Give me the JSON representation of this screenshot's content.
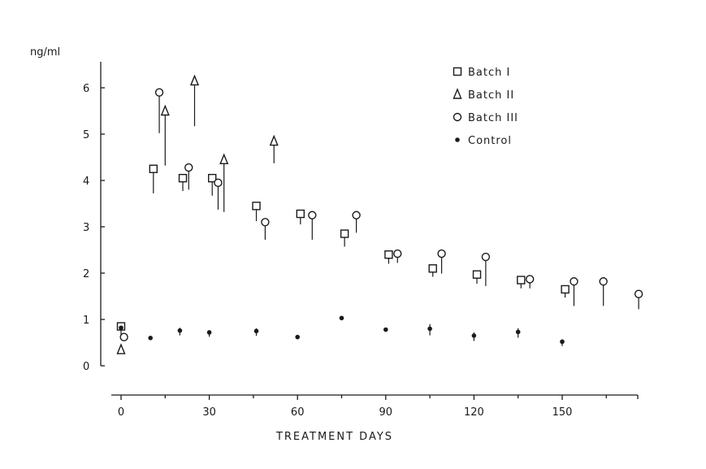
{
  "chart_data": {
    "type": "scatter",
    "ylabel": "ng/ml",
    "xlabel": "TREATMENT DAYS",
    "xlim": [
      0,
      175
    ],
    "ylim": [
      0,
      6.5
    ],
    "xticks": [
      "0",
      "30",
      "60",
      "90",
      "120",
      "150"
    ],
    "yticks": [
      "0",
      "1",
      "2",
      "3",
      "4",
      "5",
      "6"
    ],
    "legend_position": "top-right",
    "series": [
      {
        "name": "Batch I",
        "marker": "square",
        "points": [
          {
            "x": 0,
            "y": 0.85,
            "err": 0.1
          },
          {
            "x": 11,
            "y": 4.25,
            "err": 0.45
          },
          {
            "x": 21,
            "y": 4.05,
            "err": 0.2
          },
          {
            "x": 31,
            "y": 4.05,
            "err": 0.3
          },
          {
            "x": 46,
            "y": 3.45,
            "err": 0.25
          },
          {
            "x": 61,
            "y": 3.28,
            "err": 0.15
          },
          {
            "x": 76,
            "y": 2.85,
            "err": 0.2
          },
          {
            "x": 91,
            "y": 2.4,
            "err": 0.12
          },
          {
            "x": 106,
            "y": 2.1,
            "err": 0.1
          },
          {
            "x": 121,
            "y": 1.97,
            "err": 0.12
          },
          {
            "x": 136,
            "y": 1.85,
            "err": 0.1
          },
          {
            "x": 151,
            "y": 1.65,
            "err": 0.1
          }
        ]
      },
      {
        "name": "Batch II",
        "marker": "triangle",
        "points": [
          {
            "x": 0,
            "y": 0.35,
            "err": 0
          },
          {
            "x": 15,
            "y": 5.5,
            "err": 1.1
          },
          {
            "x": 25,
            "y": 6.15,
            "err": 0.9
          },
          {
            "x": 35,
            "y": 4.45,
            "err": 1.05
          },
          {
            "x": 52,
            "y": 4.85,
            "err": 0.4
          }
        ]
      },
      {
        "name": "Batch III",
        "marker": "circle",
        "points": [
          {
            "x": 1,
            "y": 0.62,
            "err": 0
          },
          {
            "x": 13,
            "y": 5.9,
            "err": 0.8
          },
          {
            "x": 23,
            "y": 4.28,
            "err": 0.4
          },
          {
            "x": 33,
            "y": 3.95,
            "err": 0.5
          },
          {
            "x": 49,
            "y": 3.1,
            "err": 0.3
          },
          {
            "x": 65,
            "y": 3.25,
            "err": 0.45
          },
          {
            "x": 80,
            "y": 3.25,
            "err": 0.3
          },
          {
            "x": 94,
            "y": 2.42,
            "err": 0.12
          },
          {
            "x": 109,
            "y": 2.42,
            "err": 0.35
          },
          {
            "x": 124,
            "y": 2.35,
            "err": 0.55
          },
          {
            "x": 139,
            "y": 1.87,
            "err": 0.12
          },
          {
            "x": 154,
            "y": 1.82,
            "err": 0.45
          },
          {
            "x": 164,
            "y": 1.82,
            "err": 0.45
          },
          {
            "x": 176,
            "y": 1.55,
            "err": 0.25
          }
        ]
      },
      {
        "name": "Control",
        "marker": "dot",
        "points": [
          {
            "x": 0,
            "y": 0.82,
            "err": 0
          },
          {
            "x": 10,
            "y": 0.6,
            "err": 0
          },
          {
            "x": 20,
            "y": 0.76,
            "err": 0.06
          },
          {
            "x": 30,
            "y": 0.72,
            "err": 0.05
          },
          {
            "x": 46,
            "y": 0.75,
            "err": 0.06
          },
          {
            "x": 60,
            "y": 0.62,
            "err": 0
          },
          {
            "x": 75,
            "y": 1.03,
            "err": 0
          },
          {
            "x": 90,
            "y": 0.78,
            "err": 0
          },
          {
            "x": 105,
            "y": 0.8,
            "err": 0.1
          },
          {
            "x": 120,
            "y": 0.65,
            "err": 0.07
          },
          {
            "x": 135,
            "y": 0.73,
            "err": 0.08
          },
          {
            "x": 150,
            "y": 0.52,
            "err": 0.05
          }
        ]
      }
    ]
  }
}
